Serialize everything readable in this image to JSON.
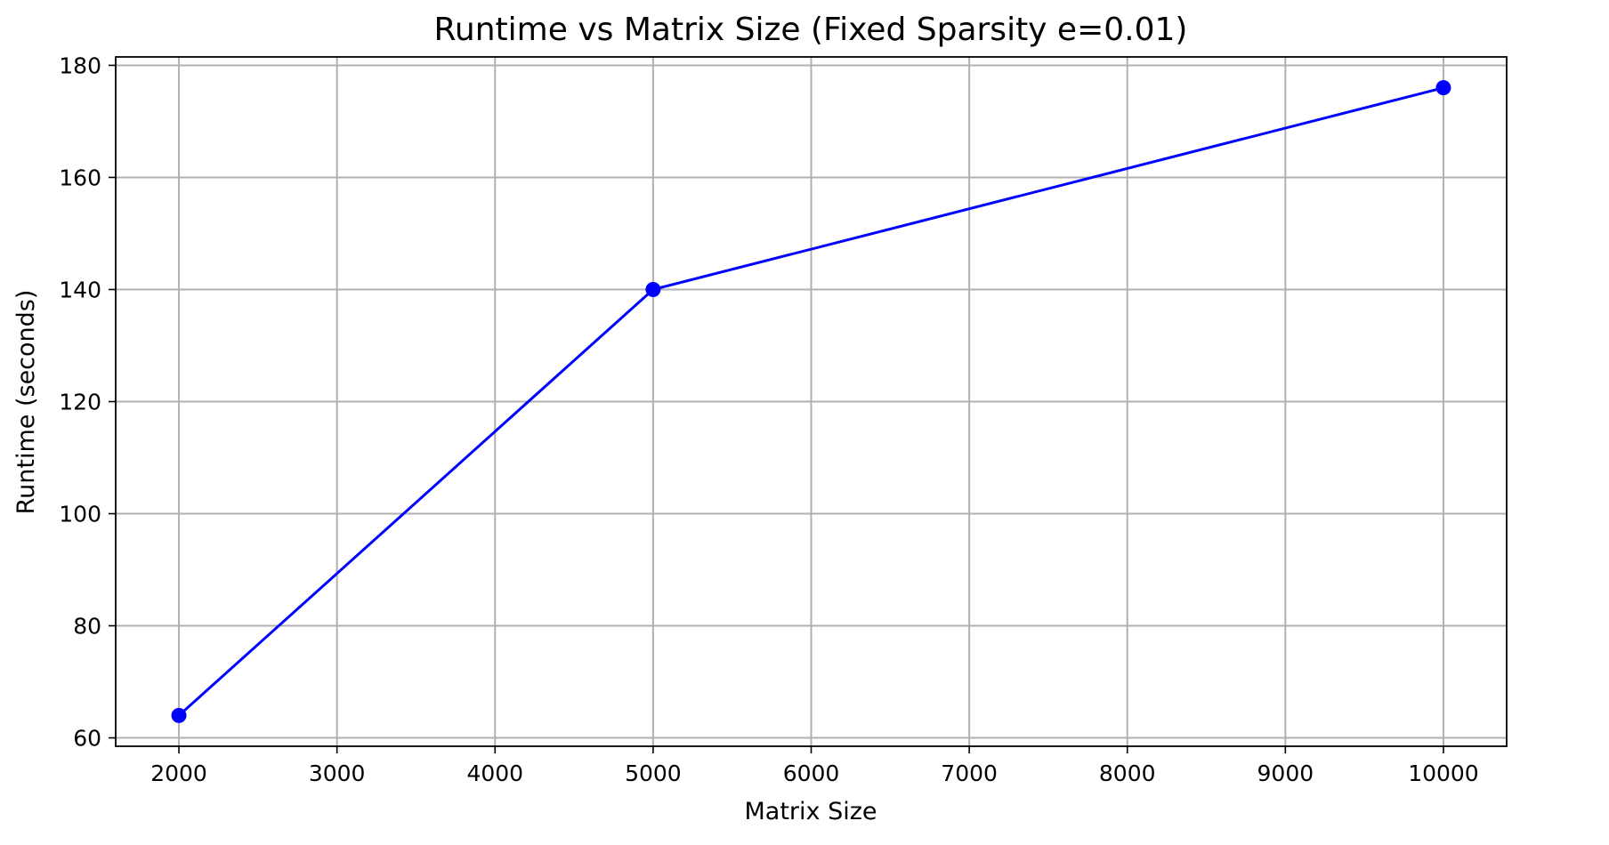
{
  "chart_data": {
    "type": "line",
    "title": "Runtime vs Matrix Size (Fixed Sparsity e=0.01)",
    "xlabel": "Matrix Size",
    "ylabel": "Runtime (seconds)",
    "xlim": [
      1600,
      10400
    ],
    "ylim": [
      58.5,
      181.5
    ],
    "xticks": [
      2000,
      3000,
      4000,
      5000,
      6000,
      7000,
      8000,
      9000,
      10000
    ],
    "yticks": [
      60,
      80,
      100,
      120,
      140,
      160,
      180
    ],
    "grid": true,
    "series": [
      {
        "color": "#0000ff",
        "marker": "circle",
        "points": [
          {
            "x": 2000,
            "y": 64
          },
          {
            "x": 5000,
            "y": 140
          },
          {
            "x": 10000,
            "y": 176
          }
        ]
      }
    ]
  }
}
